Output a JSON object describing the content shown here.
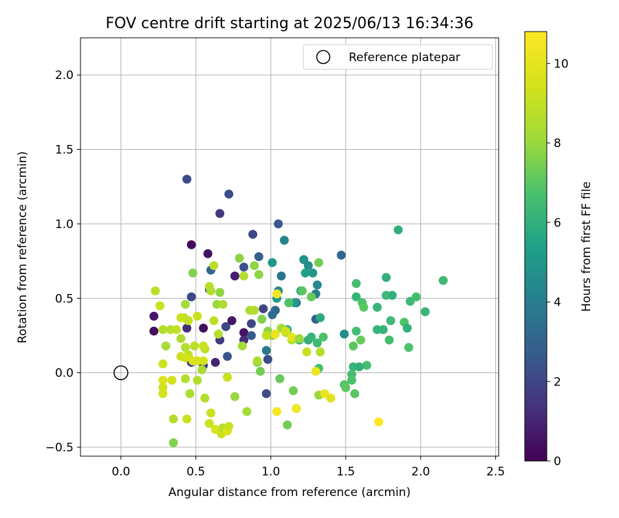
{
  "chart_data": {
    "type": "scatter",
    "title": "FOV centre drift starting at 2025/06/13 16:34:36",
    "xlabel": "Angular distance from reference (arcmin)",
    "ylabel": "Rotation from reference (arcmin)",
    "xlim": [
      -0.27,
      2.52
    ],
    "ylim": [
      -0.56,
      2.25
    ],
    "xticks": [
      0.0,
      0.5,
      1.0,
      1.5,
      2.0,
      2.5
    ],
    "xtick_labels": [
      "0.0",
      "0.5",
      "1.0",
      "1.5",
      "2.0",
      "2.5"
    ],
    "yticks": [
      -0.5,
      0.0,
      0.5,
      1.0,
      1.5,
      2.0
    ],
    "ytick_labels": [
      "−0.5",
      "0.0",
      "0.5",
      "1.0",
      "1.5",
      "2.0"
    ],
    "grid": true,
    "legend": {
      "placement": "top-right",
      "entries": [
        {
          "label": "Reference platepar",
          "marker": "open-circle"
        }
      ]
    },
    "reference": {
      "x": 0.0,
      "y": 0.0
    },
    "colorbar": {
      "label": "Hours from first FF file",
      "colormap": "viridis",
      "min": 0,
      "max": 10.8,
      "ticks": [
        0,
        2,
        4,
        6,
        8,
        10
      ],
      "tick_labels": [
        "0",
        "2",
        "4",
        "6",
        "8",
        "10"
      ]
    },
    "points": [
      [
        0.22,
        0.38,
        0.6
      ],
      [
        0.22,
        0.28,
        0.3
      ],
      [
        0.44,
        1.3,
        2.2
      ],
      [
        0.47,
        0.86,
        0.2
      ],
      [
        0.58,
        0.8,
        0.4
      ],
      [
        0.47,
        0.51,
        2.0
      ],
      [
        0.44,
        0.3,
        1.2
      ],
      [
        0.47,
        0.07,
        1.8
      ],
      [
        0.55,
        0.05,
        1.5
      ],
      [
        0.63,
        0.07,
        1.0
      ],
      [
        0.55,
        0.3,
        0.4
      ],
      [
        0.6,
        0.69,
        3.0
      ],
      [
        0.59,
        0.56,
        2.6
      ],
      [
        0.66,
        1.07,
        1.6
      ],
      [
        0.72,
        1.2,
        2.2
      ],
      [
        0.7,
        0.31,
        2.0
      ],
      [
        0.66,
        0.22,
        1.6
      ],
      [
        0.74,
        0.35,
        0.6
      ],
      [
        0.71,
        0.11,
        2.4
      ],
      [
        0.76,
        0.65,
        0.8
      ],
      [
        0.82,
        0.71,
        2.4
      ],
      [
        0.88,
        0.93,
        2.0
      ],
      [
        0.92,
        0.78,
        2.8
      ],
      [
        0.82,
        0.27,
        0.5
      ],
      [
        0.82,
        0.22,
        1.2
      ],
      [
        0.87,
        0.33,
        2.0
      ],
      [
        0.87,
        0.25,
        2.6
      ],
      [
        0.95,
        0.43,
        2.0
      ],
      [
        0.98,
        0.09,
        2.2
      ],
      [
        0.97,
        -0.14,
        2.2
      ],
      [
        1.05,
        1.0,
        2.6
      ],
      [
        1.09,
        0.89,
        4.2
      ],
      [
        1.07,
        0.65,
        3.6
      ],
      [
        1.03,
        0.42,
        3.0
      ],
      [
        1.01,
        0.39,
        3.4
      ],
      [
        0.97,
        0.15,
        3.8
      ],
      [
        1.17,
        0.47,
        3.2
      ],
      [
        1.22,
        0.76,
        4.4
      ],
      [
        1.25,
        0.72,
        4.6
      ],
      [
        1.31,
        0.59,
        4.4
      ],
      [
        1.3,
        0.53,
        4.0
      ],
      [
        1.3,
        0.36,
        2.8
      ],
      [
        1.47,
        0.79,
        3.0
      ],
      [
        1.49,
        0.26,
        4.6
      ],
      [
        1.85,
        0.96,
        6.0
      ],
      [
        2.15,
        0.62,
        6.4
      ],
      [
        1.57,
        0.6,
        6.6
      ],
      [
        1.57,
        0.51,
        6.2
      ],
      [
        1.61,
        0.47,
        6.8
      ],
      [
        1.62,
        0.44,
        7.0
      ],
      [
        1.77,
        0.64,
        6.0
      ],
      [
        1.77,
        0.52,
        6.4
      ],
      [
        1.81,
        0.52,
        6.0
      ],
      [
        1.93,
        0.48,
        6.4
      ],
      [
        1.97,
        0.51,
        6.6
      ],
      [
        2.03,
        0.41,
        6.2
      ],
      [
        1.71,
        0.44,
        6.2
      ],
      [
        1.8,
        0.35,
        6.4
      ],
      [
        1.89,
        0.34,
        6.8
      ],
      [
        1.91,
        0.3,
        6.0
      ],
      [
        1.71,
        0.29,
        6.2
      ],
      [
        1.75,
        0.29,
        6.2
      ],
      [
        1.57,
        0.28,
        6.6
      ],
      [
        1.6,
        0.22,
        7.2
      ],
      [
        1.55,
        0.18,
        7.0
      ],
      [
        1.79,
        0.22,
        6.6
      ],
      [
        1.92,
        0.17,
        6.8
      ],
      [
        1.64,
        0.05,
        6.6
      ],
      [
        1.55,
        0.04,
        6.2
      ],
      [
        1.54,
        -0.01,
        6.6
      ],
      [
        1.54,
        -0.05,
        6.8
      ],
      [
        1.49,
        -0.08,
        6.8
      ],
      [
        1.5,
        -0.1,
        7.0
      ],
      [
        1.56,
        -0.14,
        7.0
      ],
      [
        1.05,
        0.55,
        4.6
      ],
      [
        1.01,
        0.74,
        5.0
      ],
      [
        1.04,
        0.5,
        5.2
      ],
      [
        1.23,
        0.67,
        5.4
      ],
      [
        1.28,
        0.67,
        5.0
      ],
      [
        1.16,
        0.47,
        5.2
      ],
      [
        1.2,
        0.55,
        5.6
      ],
      [
        1.33,
        0.37,
        5.8
      ],
      [
        1.25,
        0.22,
        6.0
      ],
      [
        1.27,
        0.24,
        6.2
      ],
      [
        1.31,
        0.2,
        6.4
      ],
      [
        1.35,
        0.24,
        6.8
      ],
      [
        1.32,
        0.03,
        6.6
      ],
      [
        1.11,
        0.29,
        6.0
      ],
      [
        1.19,
        0.22,
        6.4
      ],
      [
        1.12,
        0.47,
        6.8
      ],
      [
        1.21,
        0.55,
        7.0
      ],
      [
        1.27,
        0.51,
        7.2
      ],
      [
        1.06,
        -0.04,
        7.2
      ],
      [
        1.15,
        -0.12,
        7.4
      ],
      [
        1.11,
        -0.35,
        7.4
      ],
      [
        1.32,
        -0.15,
        8.0
      ],
      [
        0.93,
        0.01,
        7.4
      ],
      [
        0.91,
        0.07,
        7.6
      ],
      [
        0.94,
        0.36,
        7.6
      ],
      [
        0.98,
        0.28,
        7.8
      ],
      [
        1.01,
        0.25,
        8.0
      ],
      [
        1.07,
        0.3,
        8.2
      ],
      [
        1.1,
        0.27,
        8.4
      ],
      [
        1.14,
        0.22,
        8.6
      ],
      [
        1.17,
        -0.24,
        7.8
      ],
      [
        1.24,
        0.14,
        9.2
      ],
      [
        1.33,
        0.14,
        8.6
      ],
      [
        0.79,
        0.77,
        7.8
      ],
      [
        0.89,
        0.72,
        7.8
      ],
      [
        0.92,
        0.66,
        7.8
      ],
      [
        0.82,
        0.65,
        8.6
      ],
      [
        0.86,
        0.42,
        8.4
      ],
      [
        0.89,
        0.42,
        8.6
      ],
      [
        0.81,
        0.18,
        8.2
      ],
      [
        0.91,
        0.08,
        8.4
      ],
      [
        0.84,
        -0.26,
        8.2
      ],
      [
        0.76,
        -0.16,
        8.0
      ],
      [
        0.66,
        0.54,
        7.8
      ],
      [
        0.64,
        0.46,
        8.0
      ],
      [
        0.68,
        0.46,
        8.4
      ],
      [
        0.62,
        0.72,
        8.8
      ],
      [
        0.59,
        0.58,
        8.8
      ],
      [
        0.6,
        0.55,
        8.6
      ],
      [
        0.62,
        0.35,
        8.8
      ],
      [
        0.65,
        0.26,
        8.6
      ],
      [
        0.56,
        0.16,
        8.8
      ],
      [
        0.51,
        0.38,
        9.2
      ],
      [
        0.48,
        0.67,
        7.6
      ],
      [
        0.43,
        0.46,
        8.2
      ],
      [
        0.42,
        0.37,
        8.8
      ],
      [
        0.45,
        0.35,
        9.0
      ],
      [
        0.4,
        0.37,
        9.2
      ],
      [
        0.37,
        0.29,
        9.0
      ],
      [
        0.33,
        0.29,
        8.8
      ],
      [
        0.28,
        0.29,
        8.6
      ],
      [
        0.3,
        0.18,
        8.2
      ],
      [
        0.4,
        0.23,
        8.4
      ],
      [
        0.43,
        0.17,
        8.6
      ],
      [
        0.45,
        0.12,
        9.0
      ],
      [
        0.49,
        0.18,
        8.8
      ],
      [
        0.48,
        0.08,
        9.6
      ],
      [
        0.51,
        0.08,
        9.6
      ],
      [
        0.55,
        0.18,
        9.2
      ],
      [
        0.55,
        0.08,
        9.4
      ],
      [
        0.54,
        0.02,
        8.4
      ],
      [
        0.4,
        0.11,
        9.2
      ],
      [
        0.43,
        0.1,
        9.4
      ],
      [
        0.28,
        0.06,
        9.2
      ],
      [
        0.23,
        0.55,
        8.8
      ],
      [
        0.26,
        0.45,
        9.2
      ],
      [
        0.28,
        -0.05,
        9.8
      ],
      [
        0.28,
        -0.1,
        9.4
      ],
      [
        0.28,
        -0.14,
        9.4
      ],
      [
        0.34,
        -0.05,
        9.4
      ],
      [
        0.43,
        -0.04,
        8.6
      ],
      [
        0.46,
        -0.14,
        8.4
      ],
      [
        0.51,
        -0.05,
        8.6
      ],
      [
        0.56,
        -0.17,
        8.6
      ],
      [
        0.35,
        -0.31,
        8.6
      ],
      [
        0.44,
        -0.31,
        9.2
      ],
      [
        0.35,
        -0.47,
        7.6
      ],
      [
        0.6,
        -0.27,
        9.2
      ],
      [
        0.59,
        -0.34,
        9.2
      ],
      [
        0.63,
        -0.38,
        9.6
      ],
      [
        0.67,
        -0.41,
        9.2
      ],
      [
        0.68,
        -0.37,
        8.8
      ],
      [
        0.71,
        -0.39,
        9.6
      ],
      [
        0.72,
        -0.36,
        9.2
      ],
      [
        0.71,
        -0.03,
        9.2
      ],
      [
        1.04,
        0.53,
        10.4
      ],
      [
        1.03,
        0.26,
        10.2
      ],
      [
        1.14,
        0.24,
        10.0
      ],
      [
        1.04,
        -0.26,
        10.6
      ],
      [
        1.17,
        -0.24,
        10.4
      ],
      [
        1.3,
        0.01,
        10.2
      ],
      [
        1.36,
        -0.14,
        10.2
      ],
      [
        1.4,
        -0.17,
        9.8
      ],
      [
        1.72,
        -0.33,
        10.8
      ],
      [
        1.59,
        0.04,
        6.0
      ],
      [
        1.22,
        0.76,
        4.8
      ],
      [
        1.32,
        0.74,
        7.4
      ],
      [
        1.1,
        0.28,
        9.4
      ],
      [
        1.19,
        0.23,
        8.0
      ],
      [
        0.97,
        0.25,
        9.0
      ]
    ]
  }
}
